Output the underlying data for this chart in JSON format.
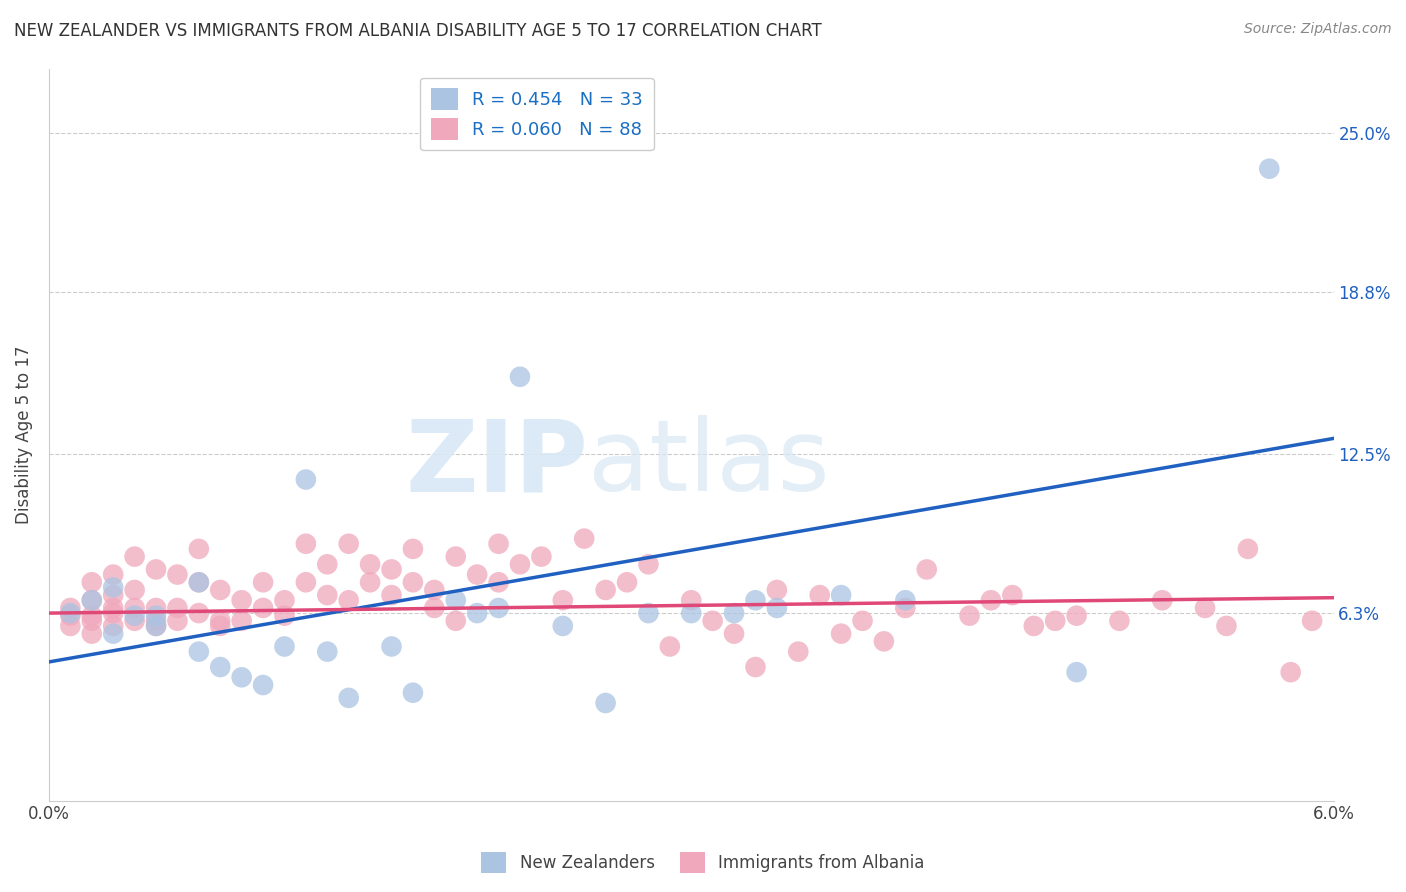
{
  "title": "NEW ZEALANDER VS IMMIGRANTS FROM ALBANIA DISABILITY AGE 5 TO 17 CORRELATION CHART",
  "source": "Source: ZipAtlas.com",
  "ylabel": "Disability Age 5 to 17",
  "yticks": [
    0.0,
    0.063,
    0.125,
    0.188,
    0.25
  ],
  "ytick_labels": [
    "",
    "6.3%",
    "12.5%",
    "18.8%",
    "25.0%"
  ],
  "xmin": 0.0,
  "xmax": 0.06,
  "ymin": -0.01,
  "ymax": 0.275,
  "nz_R": 0.454,
  "nz_N": 33,
  "alb_R": 0.06,
  "alb_N": 88,
  "nz_color": "#aac4e2",
  "nz_line_color": "#2060c0",
  "alb_color": "#f0a8bc",
  "alb_line_color": "#e04878",
  "nz_line_x0": 0.0,
  "nz_line_y0": 0.044,
  "nz_line_x1": 0.06,
  "nz_line_y1": 0.131,
  "alb_line_x0": 0.0,
  "alb_line_y0": 0.063,
  "alb_line_x1": 0.06,
  "alb_line_y1": 0.069,
  "nz_scatter_x": [
    0.001,
    0.002,
    0.003,
    0.003,
    0.004,
    0.005,
    0.005,
    0.007,
    0.007,
    0.008,
    0.009,
    0.01,
    0.011,
    0.012,
    0.013,
    0.014,
    0.016,
    0.017,
    0.019,
    0.02,
    0.021,
    0.022,
    0.024,
    0.026,
    0.028,
    0.03,
    0.032,
    0.033,
    0.034,
    0.037,
    0.04,
    0.048,
    0.057
  ],
  "nz_scatter_y": [
    0.063,
    0.068,
    0.055,
    0.073,
    0.062,
    0.062,
    0.058,
    0.075,
    0.048,
    0.042,
    0.038,
    0.035,
    0.05,
    0.115,
    0.048,
    0.03,
    0.05,
    0.032,
    0.068,
    0.063,
    0.065,
    0.155,
    0.058,
    0.028,
    0.063,
    0.063,
    0.063,
    0.068,
    0.065,
    0.07,
    0.068,
    0.04,
    0.236
  ],
  "alb_scatter_x": [
    0.001,
    0.001,
    0.001,
    0.002,
    0.002,
    0.002,
    0.002,
    0.002,
    0.003,
    0.003,
    0.003,
    0.003,
    0.003,
    0.004,
    0.004,
    0.004,
    0.004,
    0.005,
    0.005,
    0.005,
    0.005,
    0.006,
    0.006,
    0.006,
    0.007,
    0.007,
    0.007,
    0.008,
    0.008,
    0.008,
    0.009,
    0.009,
    0.01,
    0.01,
    0.011,
    0.011,
    0.012,
    0.012,
    0.013,
    0.013,
    0.014,
    0.014,
    0.015,
    0.015,
    0.016,
    0.016,
    0.017,
    0.017,
    0.018,
    0.018,
    0.019,
    0.019,
    0.02,
    0.021,
    0.021,
    0.022,
    0.023,
    0.024,
    0.025,
    0.026,
    0.027,
    0.028,
    0.029,
    0.03,
    0.031,
    0.032,
    0.033,
    0.034,
    0.035,
    0.036,
    0.037,
    0.038,
    0.039,
    0.04,
    0.041,
    0.043,
    0.044,
    0.045,
    0.046,
    0.047,
    0.048,
    0.05,
    0.052,
    0.054,
    0.055,
    0.056,
    0.058,
    0.059
  ],
  "alb_scatter_y": [
    0.062,
    0.058,
    0.065,
    0.06,
    0.055,
    0.062,
    0.068,
    0.075,
    0.058,
    0.063,
    0.07,
    0.078,
    0.065,
    0.06,
    0.065,
    0.072,
    0.085,
    0.06,
    0.058,
    0.065,
    0.08,
    0.06,
    0.065,
    0.078,
    0.063,
    0.075,
    0.088,
    0.06,
    0.058,
    0.072,
    0.06,
    0.068,
    0.065,
    0.075,
    0.068,
    0.062,
    0.075,
    0.09,
    0.07,
    0.082,
    0.09,
    0.068,
    0.075,
    0.082,
    0.08,
    0.07,
    0.088,
    0.075,
    0.072,
    0.065,
    0.085,
    0.06,
    0.078,
    0.075,
    0.09,
    0.082,
    0.085,
    0.068,
    0.092,
    0.072,
    0.075,
    0.082,
    0.05,
    0.068,
    0.06,
    0.055,
    0.042,
    0.072,
    0.048,
    0.07,
    0.055,
    0.06,
    0.052,
    0.065,
    0.08,
    0.062,
    0.068,
    0.07,
    0.058,
    0.06,
    0.062,
    0.06,
    0.068,
    0.065,
    0.058,
    0.088,
    0.04,
    0.06
  ],
  "legend_nz_label": "R = 0.454   N = 33",
  "legend_alb_label": "R = 0.060   N = 88",
  "bottom_legend_nz": "New Zealanders",
  "bottom_legend_alb": "Immigrants from Albania",
  "watermark_zip": "ZIP",
  "watermark_atlas": "atlas",
  "grid_color": "#cccccc",
  "background_color": "#ffffff"
}
